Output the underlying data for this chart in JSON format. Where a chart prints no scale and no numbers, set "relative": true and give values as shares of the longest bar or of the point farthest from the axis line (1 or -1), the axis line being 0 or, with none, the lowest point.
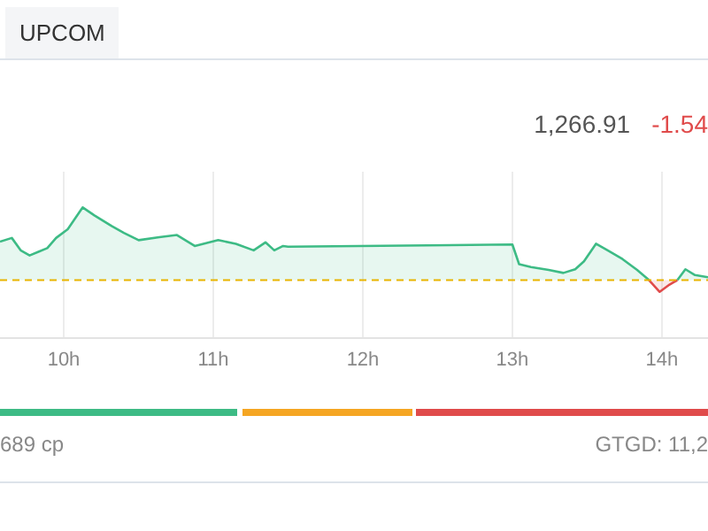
{
  "chart_data": {
    "type": "area",
    "title": "UPCOM",
    "relative": true,
    "annotations": [
      "1,266.91",
      "-1.54",
      "689 cp",
      "GTGD: 11,2"
    ],
    "xlim": [
      9.574,
      14.308
    ],
    "xticks": [
      {
        "value": 10,
        "label": "10h"
      },
      {
        "value": 11,
        "label": "11h"
      },
      {
        "value": 12,
        "label": "12h"
      },
      {
        "value": 13,
        "label": "13h"
      },
      {
        "value": 14,
        "label": "14h"
      }
    ],
    "grid": "x",
    "legend": false,
    "marker": "none",
    "line_style": "solid",
    "ref_lines": [
      {
        "axis": "y",
        "value": 0,
        "color": "#e8b400",
        "line_style": "dashed"
      }
    ],
    "series": [
      {
        "color": "#3dbb85",
        "x": [
          9.574,
          9.653,
          9.712,
          9.772,
          9.831,
          9.89,
          9.949,
          10.027,
          10.127,
          10.205,
          10.323,
          10.402,
          10.501,
          10.639,
          10.757,
          10.876,
          11.033,
          11.151,
          11.27,
          11.349,
          11.408,
          11.467,
          11.5,
          13.0,
          13.045,
          13.124,
          13.243,
          13.341,
          13.42,
          13.479,
          13.559,
          13.637,
          13.736,
          13.834,
          13.914
        ],
        "values": [
          0.53,
          0.58,
          0.41,
          0.34,
          0.39,
          0.44,
          0.58,
          0.7,
          1,
          0.89,
          0.74,
          0.65,
          0.55,
          0.59,
          0.62,
          0.47,
          0.55,
          0.5,
          0.41,
          0.52,
          0.41,
          0.47,
          0.46,
          0.49,
          0.22,
          0.18,
          0.14,
          0.1,
          0.15,
          0.26,
          0.5,
          0.41,
          0.29,
          0.14,
          0
        ]
      },
      {
        "color": "#e04b4b",
        "x": [
          13.914,
          13.985,
          14.051,
          14.103
        ],
        "values": [
          0,
          -0.16,
          -0.06,
          0
        ]
      },
      {
        "color": "#3dbb85",
        "x": [
          14.103,
          14.157,
          14.221,
          14.308
        ],
        "values": [
          0,
          0.15,
          0.07,
          0.04
        ]
      }
    ]
  }
}
